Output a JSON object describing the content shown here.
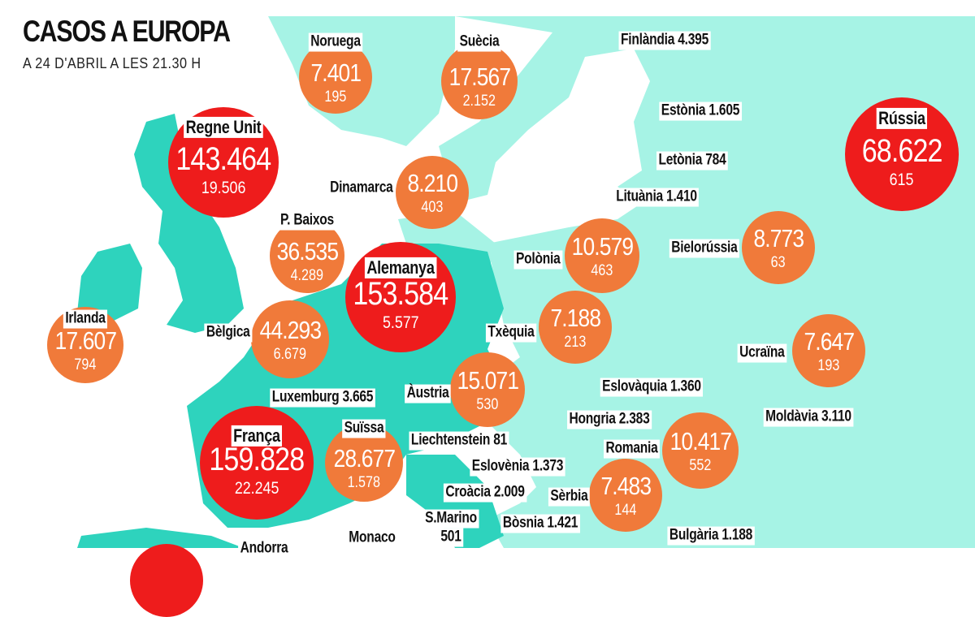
{
  "header": {
    "title": "CASOS A EUROPA",
    "subtitle": "A 24 D'ABRIL A LES 21.30 H"
  },
  "colors": {
    "high": "#ee1c1c",
    "medium": "#f07a3a",
    "land_highlight": "#2ed3bd",
    "land": "#a6f3e5"
  },
  "bubbles": [
    {
      "name": "Noruega",
      "cases": "7.401",
      "deaths": "195",
      "level": "medium"
    },
    {
      "name": "Suècia",
      "cases": "17.567",
      "deaths": "2.152",
      "level": "medium"
    },
    {
      "name": "Regne Unit",
      "cases": "143.464",
      "deaths": "19.506",
      "level": "high"
    },
    {
      "name": "Dinamarca",
      "cases": "8.210",
      "deaths": "403",
      "level": "medium"
    },
    {
      "name": "P. Baixos",
      "cases": "36.535",
      "deaths": "4.289",
      "level": "medium"
    },
    {
      "name": "Alemanya",
      "cases": "153.584",
      "deaths": "5.577",
      "level": "high"
    },
    {
      "name": "Irlanda",
      "cases": "17.607",
      "deaths": "794",
      "level": "medium"
    },
    {
      "name": "Bèlgica",
      "cases": "44.293",
      "deaths": "6.679",
      "level": "medium"
    },
    {
      "name": "Polònia",
      "cases": "10.579",
      "deaths": "463",
      "level": "medium"
    },
    {
      "name": "Bielorússia",
      "cases": "8.773",
      "deaths": "63",
      "level": "medium"
    },
    {
      "name": "Rússia",
      "cases": "68.622",
      "deaths": "615",
      "level": "high"
    },
    {
      "name": "Txèquia",
      "cases": "7.188",
      "deaths": "213",
      "level": "medium"
    },
    {
      "name": "Ucraïna",
      "cases": "7.647",
      "deaths": "193",
      "level": "medium"
    },
    {
      "name": "Àustria",
      "cases": "15.071",
      "deaths": "530",
      "level": "medium"
    },
    {
      "name": "França",
      "cases": "159.828",
      "deaths": "22.245",
      "level": "high"
    },
    {
      "name": "Suïssa",
      "cases": "28.677",
      "deaths": "1.578",
      "level": "medium"
    },
    {
      "name": "Romania",
      "cases": "10.417",
      "deaths": "552",
      "level": "medium"
    },
    {
      "name": "Sèrbia",
      "cases": "7.483",
      "deaths": "144",
      "level": "medium"
    }
  ],
  "labels": [
    "Finlàndia 4.395",
    "Estònia 1.605",
    "Letònia 784",
    "Lituània 1.410",
    "Eslovàquia 1.360",
    "Hongria 2.383",
    "Moldàvia 3.110",
    "Luxemburg 3.665",
    "Liechtenstein 81",
    "Eslovènia 1.373",
    "Croàcia 2.009",
    "S.Marino",
    "501",
    "Bòsnia 1.421",
    "Monaco",
    "Bulgària 1.188",
    "Andorra"
  ]
}
